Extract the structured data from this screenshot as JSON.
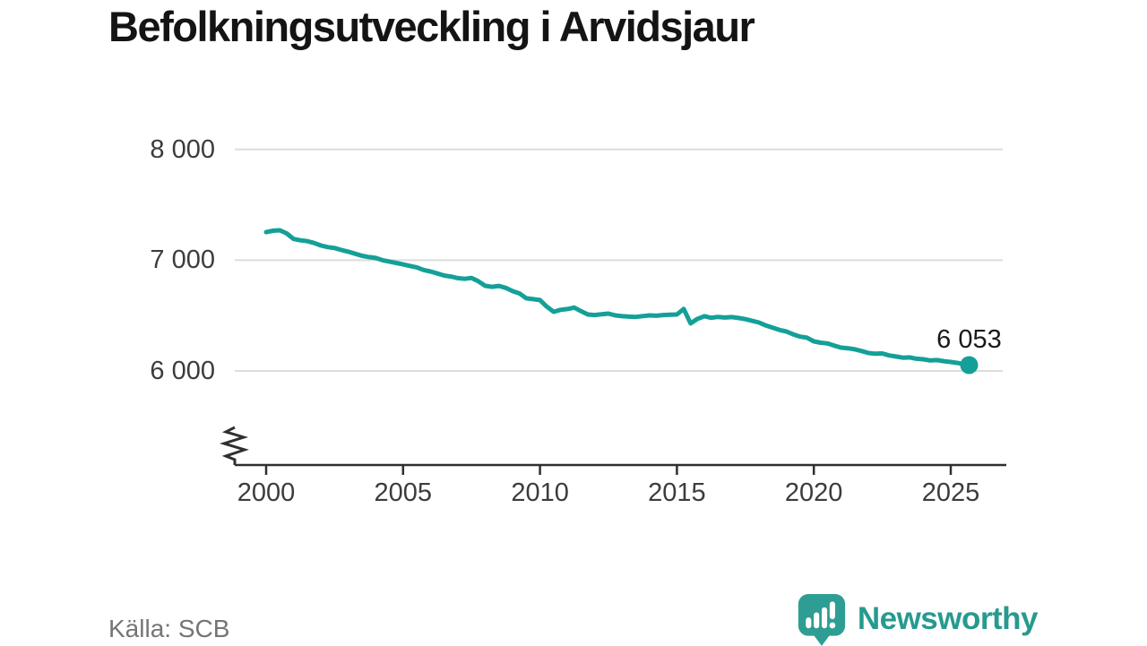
{
  "title": "Befolkningsutveckling i Arvidsjaur",
  "source": "Källa: SCB",
  "branding": {
    "name": "Newsworthy",
    "logo_icon": "speech-bubble-bar-chart-exclamation"
  },
  "annotation": {
    "last_value_label": "6 053"
  },
  "colors": {
    "line": "#14a098",
    "grid": "#dcdcdc",
    "axis": "#2f2f2f",
    "tick_text": "#3c3c3c",
    "title_text": "#141414",
    "source_text": "#757575",
    "logo_icon": "#2e9e94",
    "logo_text": "#279a90",
    "background": "#ffffff"
  },
  "chart_data": {
    "type": "line",
    "title": "Befolkningsutveckling i Arvidsjaur",
    "xlabel": "",
    "ylabel": "",
    "grid": "horizontal",
    "y_axis_break": true,
    "legend": "none",
    "x_ticks": [
      {
        "value": 2000,
        "label": "2000"
      },
      {
        "value": 2005,
        "label": "2005"
      },
      {
        "value": 2010,
        "label": "2010"
      },
      {
        "value": 2015,
        "label": "2015"
      },
      {
        "value": 2020,
        "label": "2020"
      },
      {
        "value": 2025,
        "label": "2025"
      }
    ],
    "y_ticks": [
      {
        "value": 8000,
        "label": "8 000"
      },
      {
        "value": 7000,
        "label": "7 000"
      },
      {
        "value": 6000,
        "label": "6 000"
      }
    ],
    "xlim": [
      1999.9,
      2027.0
    ],
    "ylim_visible": [
      5400,
      8200
    ],
    "series": [
      {
        "name": "Befolkning",
        "points": [
          [
            2000.0,
            7253
          ],
          [
            2000.25,
            7266
          ],
          [
            2000.5,
            7270
          ],
          [
            2000.75,
            7242
          ],
          [
            2001.0,
            7192
          ],
          [
            2001.25,
            7180
          ],
          [
            2001.5,
            7172
          ],
          [
            2001.75,
            7155
          ],
          [
            2002.0,
            7133
          ],
          [
            2002.25,
            7118
          ],
          [
            2002.5,
            7110
          ],
          [
            2002.75,
            7092
          ],
          [
            2003.0,
            7077
          ],
          [
            2003.25,
            7058
          ],
          [
            2003.5,
            7040
          ],
          [
            2003.75,
            7028
          ],
          [
            2004.0,
            7020
          ],
          [
            2004.25,
            7000
          ],
          [
            2004.5,
            6988
          ],
          [
            2004.75,
            6975
          ],
          [
            2005.0,
            6962
          ],
          [
            2005.25,
            6948
          ],
          [
            2005.5,
            6935
          ],
          [
            2005.75,
            6912
          ],
          [
            2006.0,
            6898
          ],
          [
            2006.25,
            6880
          ],
          [
            2006.5,
            6862
          ],
          [
            2006.75,
            6852
          ],
          [
            2007.0,
            6838
          ],
          [
            2007.25,
            6832
          ],
          [
            2007.5,
            6840
          ],
          [
            2007.75,
            6810
          ],
          [
            2008.0,
            6769
          ],
          [
            2008.25,
            6760
          ],
          [
            2008.5,
            6768
          ],
          [
            2008.75,
            6750
          ],
          [
            2009.0,
            6721
          ],
          [
            2009.25,
            6700
          ],
          [
            2009.5,
            6656
          ],
          [
            2009.75,
            6648
          ],
          [
            2010.0,
            6640
          ],
          [
            2010.25,
            6580
          ],
          [
            2010.5,
            6534
          ],
          [
            2010.75,
            6552
          ],
          [
            2011.0,
            6559
          ],
          [
            2011.25,
            6572
          ],
          [
            2011.5,
            6540
          ],
          [
            2011.75,
            6510
          ],
          [
            2012.0,
            6505
          ],
          [
            2012.25,
            6512
          ],
          [
            2012.5,
            6518
          ],
          [
            2012.75,
            6502
          ],
          [
            2013.0,
            6494
          ],
          [
            2013.25,
            6490
          ],
          [
            2013.5,
            6488
          ],
          [
            2013.75,
            6495
          ],
          [
            2014.0,
            6502
          ],
          [
            2014.25,
            6498
          ],
          [
            2014.5,
            6505
          ],
          [
            2014.75,
            6508
          ],
          [
            2015.0,
            6510
          ],
          [
            2015.25,
            6560
          ],
          [
            2015.5,
            6430
          ],
          [
            2015.75,
            6470
          ],
          [
            2016.0,
            6494
          ],
          [
            2016.25,
            6480
          ],
          [
            2016.5,
            6488
          ],
          [
            2016.75,
            6482
          ],
          [
            2017.0,
            6486
          ],
          [
            2017.25,
            6478
          ],
          [
            2017.5,
            6468
          ],
          [
            2017.75,
            6452
          ],
          [
            2018.0,
            6437
          ],
          [
            2018.25,
            6410
          ],
          [
            2018.5,
            6390
          ],
          [
            2018.75,
            6370
          ],
          [
            2019.0,
            6356
          ],
          [
            2019.25,
            6330
          ],
          [
            2019.5,
            6310
          ],
          [
            2019.75,
            6300
          ],
          [
            2020.0,
            6267
          ],
          [
            2020.25,
            6255
          ],
          [
            2020.5,
            6248
          ],
          [
            2020.75,
            6228
          ],
          [
            2021.0,
            6210
          ],
          [
            2021.25,
            6205
          ],
          [
            2021.5,
            6195
          ],
          [
            2021.75,
            6180
          ],
          [
            2022.0,
            6162
          ],
          [
            2022.25,
            6155
          ],
          [
            2022.5,
            6158
          ],
          [
            2022.75,
            6140
          ],
          [
            2023.0,
            6130
          ],
          [
            2023.25,
            6120
          ],
          [
            2023.5,
            6122
          ],
          [
            2023.75,
            6110
          ],
          [
            2024.0,
            6105
          ],
          [
            2024.25,
            6095
          ],
          [
            2024.5,
            6098
          ],
          [
            2024.75,
            6088
          ],
          [
            2025.0,
            6081
          ],
          [
            2025.25,
            6072
          ],
          [
            2025.5,
            6060
          ],
          [
            2025.67,
            6053
          ]
        ]
      }
    ],
    "last_point": {
      "x": 2025.67,
      "y": 6053,
      "label": "6 053"
    }
  }
}
